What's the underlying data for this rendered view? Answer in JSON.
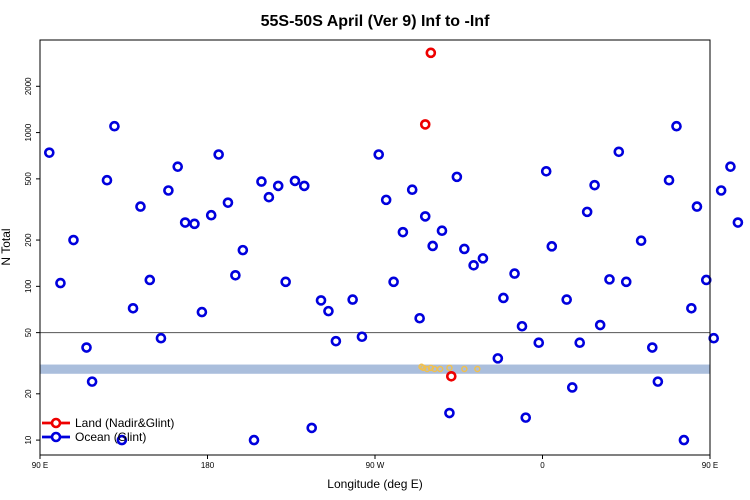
{
  "chart_data": {
    "type": "scatter",
    "title": "55S-50S April (Ver 9)   Inf to -Inf",
    "xlabel": "Longitude (deg E)",
    "ylabel": "N Total",
    "xlim": [
      90,
      450
    ],
    "ylim": [
      8,
      4000
    ],
    "y_scale": "log",
    "x_ticks": [
      {
        "value": 90,
        "label": "90 E"
      },
      {
        "value": 180,
        "label": "180"
      },
      {
        "value": 270,
        "label": "90 W"
      },
      {
        "value": 360,
        "label": "0"
      },
      {
        "value": 450,
        "label": "90 E"
      },
      {
        "value": 540,
        "label": "180"
      }
    ],
    "y_ticks": [
      10,
      20,
      50,
      100,
      200,
      500,
      1000,
      2000
    ],
    "hline": 50,
    "band": [
      27,
      31
    ],
    "band_color": "#aabedc",
    "grid": false,
    "legend_position": "bottom-left",
    "series": [
      {
        "name": "Land (Nadir&Glint)",
        "color": "#ee0000",
        "points": [
          {
            "x": 300,
            "y": 3300
          },
          {
            "x": 297,
            "y": 1130
          },
          {
            "x": 311,
            "y": 26
          }
        ]
      },
      {
        "name": "Ocean (Glint)",
        "color": "#0000dd",
        "points": [
          {
            "x": 95,
            "y": 740
          },
          {
            "x": 101,
            "y": 105
          },
          {
            "x": 108,
            "y": 200
          },
          {
            "x": 115,
            "y": 40
          },
          {
            "x": 118,
            "y": 24
          },
          {
            "x": 126,
            "y": 490
          },
          {
            "x": 130,
            "y": 1100
          },
          {
            "x": 134,
            "y": 10
          },
          {
            "x": 140,
            "y": 72
          },
          {
            "x": 144,
            "y": 330
          },
          {
            "x": 149,
            "y": 110
          },
          {
            "x": 155,
            "y": 46
          },
          {
            "x": 159,
            "y": 420
          },
          {
            "x": 164,
            "y": 600
          },
          {
            "x": 168,
            "y": 260
          },
          {
            "x": 173,
            "y": 255
          },
          {
            "x": 177,
            "y": 68
          },
          {
            "x": 182,
            "y": 290
          },
          {
            "x": 186,
            "y": 720
          },
          {
            "x": 191,
            "y": 350
          },
          {
            "x": 195,
            "y": 118
          },
          {
            "x": 199,
            "y": 172
          },
          {
            "x": 205,
            "y": 10
          },
          {
            "x": 209,
            "y": 480
          },
          {
            "x": 213,
            "y": 380
          },
          {
            "x": 218,
            "y": 450
          },
          {
            "x": 222,
            "y": 107
          },
          {
            "x": 227,
            "y": 485
          },
          {
            "x": 232,
            "y": 450
          },
          {
            "x": 236,
            "y": 12
          },
          {
            "x": 241,
            "y": 81
          },
          {
            "x": 245,
            "y": 69
          },
          {
            "x": 249,
            "y": 44
          },
          {
            "x": 258,
            "y": 82
          },
          {
            "x": 263,
            "y": 47
          },
          {
            "x": 272,
            "y": 720
          },
          {
            "x": 276,
            "y": 365
          },
          {
            "x": 280,
            "y": 107
          },
          {
            "x": 285,
            "y": 225
          },
          {
            "x": 290,
            "y": 425
          },
          {
            "x": 294,
            "y": 62
          },
          {
            "x": 297,
            "y": 285
          },
          {
            "x": 301,
            "y": 183
          },
          {
            "x": 306,
            "y": 230
          },
          {
            "x": 310,
            "y": 15
          },
          {
            "x": 314,
            "y": 515
          },
          {
            "x": 318,
            "y": 175
          },
          {
            "x": 323,
            "y": 137
          },
          {
            "x": 328,
            "y": 152
          },
          {
            "x": 336,
            "y": 34
          },
          {
            "x": 339,
            "y": 84
          },
          {
            "x": 345,
            "y": 121
          },
          {
            "x": 349,
            "y": 55
          },
          {
            "x": 351,
            "y": 14
          },
          {
            "x": 358,
            "y": 43
          },
          {
            "x": 362,
            "y": 560
          },
          {
            "x": 365,
            "y": 182
          },
          {
            "x": 373,
            "y": 82
          },
          {
            "x": 376,
            "y": 22
          },
          {
            "x": 380,
            "y": 43
          },
          {
            "x": 384,
            "y": 305
          },
          {
            "x": 388,
            "y": 455
          },
          {
            "x": 391,
            "y": 56
          },
          {
            "x": 396,
            "y": 111
          },
          {
            "x": 401,
            "y": 750
          },
          {
            "x": 405,
            "y": 107
          },
          {
            "x": 413,
            "y": 198
          },
          {
            "x": 419,
            "y": 40
          },
          {
            "x": 422,
            "y": 24
          },
          {
            "x": 428,
            "y": 490
          },
          {
            "x": 432,
            "y": 1100
          },
          {
            "x": 436,
            "y": 10
          },
          {
            "x": 440,
            "y": 72
          },
          {
            "x": 443,
            "y": 330
          },
          {
            "x": 448,
            "y": 110
          },
          {
            "x": 452,
            "y": 46
          },
          {
            "x": 456,
            "y": 420
          },
          {
            "x": 461,
            "y": 600
          },
          {
            "x": 465,
            "y": 260
          }
        ]
      }
    ],
    "flagged_points": {
      "color": "#f0c050",
      "points": [
        {
          "x": 295,
          "y": 30
        },
        {
          "x": 296,
          "y": 29.5
        },
        {
          "x": 298,
          "y": 29
        },
        {
          "x": 300,
          "y": 29.5
        },
        {
          "x": 302,
          "y": 29
        },
        {
          "x": 305,
          "y": 29
        },
        {
          "x": 310,
          "y": 29.5
        },
        {
          "x": 318,
          "y": 29
        },
        {
          "x": 325,
          "y": 29
        }
      ]
    }
  }
}
